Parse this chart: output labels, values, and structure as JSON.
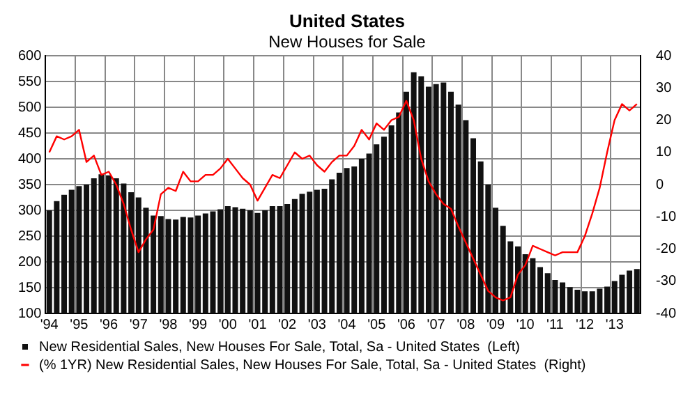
{
  "chart_data": {
    "type": "bar",
    "title": "United States",
    "subtitle": "New Houses for Sale",
    "categories": [
      "'94",
      null,
      null,
      null,
      "'95",
      null,
      null,
      null,
      "'96",
      null,
      null,
      null,
      "'97",
      null,
      null,
      null,
      "'98",
      null,
      null,
      null,
      "'99",
      null,
      null,
      null,
      "'00",
      null,
      null,
      null,
      "'01",
      null,
      null,
      null,
      "'02",
      null,
      null,
      null,
      "'03",
      null,
      null,
      null,
      "'04",
      null,
      null,
      null,
      "'05",
      null,
      null,
      null,
      "'06",
      null,
      null,
      null,
      "'07",
      null,
      null,
      null,
      "'08",
      null,
      null,
      null,
      "'09",
      null,
      null,
      null,
      "'10",
      null,
      null,
      null,
      "'11",
      null,
      null,
      null,
      "'12",
      null,
      null,
      null,
      "'13",
      null,
      null,
      null
    ],
    "series": [
      {
        "name": "New Residential Sales, New Houses For Sale, Total, Sa - United States  (Left)",
        "color": "#111111",
        "values": [
          300,
          318,
          330,
          340,
          347,
          350,
          362,
          370,
          368,
          362,
          352,
          335,
          325,
          305,
          290,
          289,
          283,
          282,
          287,
          286,
          290,
          294,
          298,
          302,
          308,
          306,
          303,
          300,
          295,
          300,
          308,
          308,
          312,
          322,
          332,
          336,
          340,
          342,
          360,
          373,
          382,
          385,
          400,
          410,
          428,
          443,
          465,
          490,
          530,
          568,
          560,
          540,
          545,
          548,
          530,
          505,
          475,
          440,
          395,
          350,
          305,
          270,
          240,
          230,
          215,
          207,
          190,
          178,
          165,
          160,
          151,
          146,
          143,
          143,
          148,
          152,
          163,
          175,
          183,
          186
        ]
      },
      {
        "name": "(% 1YR) New Residential Sales, New Houses For Sale, Total, Sa - United States  (Right)",
        "type": "line",
        "axis": "y2",
        "color": "#ff0000",
        "values": [
          10,
          15,
          14,
          15,
          17,
          7,
          9,
          3,
          4,
          0,
          -6,
          -14,
          -21,
          -17,
          -14,
          -3,
          -1,
          -2,
          4,
          1,
          1,
          3,
          3,
          5,
          8,
          5,
          2,
          0,
          -5,
          -1,
          3,
          2,
          6,
          10,
          8,
          9,
          6,
          4,
          7,
          9,
          9,
          12,
          17,
          14,
          19,
          17,
          20,
          21,
          26,
          20,
          8,
          1,
          -3,
          -6,
          -7.5,
          -13,
          -18,
          -23,
          -28,
          -33,
          -35,
          -36,
          -35,
          -28,
          -25,
          -19,
          -20,
          -21,
          -22,
          -21,
          -21,
          -21,
          -16,
          -9,
          -1,
          10,
          20,
          25,
          23,
          25
        ]
      }
    ],
    "ylim": [
      100,
      600
    ],
    "yticks": [
      100,
      150,
      200,
      250,
      300,
      350,
      400,
      450,
      500,
      550,
      600
    ],
    "y2lim": [
      -40,
      40
    ],
    "y2ticks": [
      -40,
      -30,
      -20,
      -10,
      0,
      10,
      20,
      30,
      40
    ],
    "grid": true,
    "legend": "bottom"
  }
}
